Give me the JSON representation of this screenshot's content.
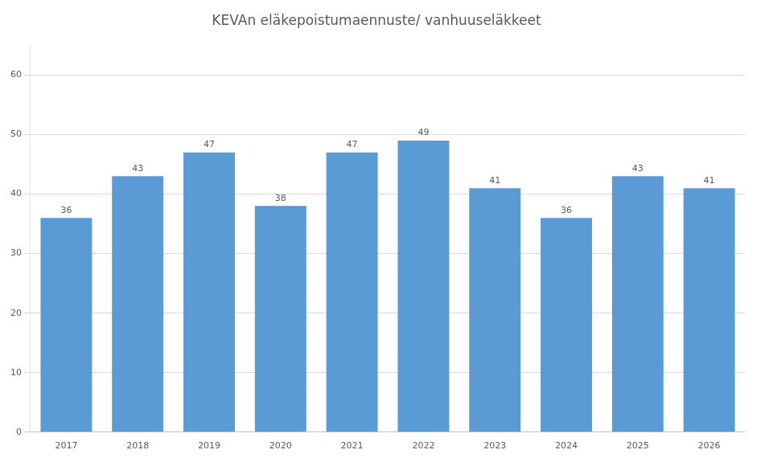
{
  "chart_data": {
    "type": "bar",
    "title": "KEVAn eläkepoistumaennuste/ vanhuuseläkkeet",
    "categories": [
      "2017",
      "2018",
      "2019",
      "2020",
      "2021",
      "2022",
      "2023",
      "2024",
      "2025",
      "2026"
    ],
    "values": [
      36,
      43,
      47,
      38,
      47,
      49,
      41,
      36,
      43,
      41
    ],
    "color": "#5b9bd5",
    "ylim": [
      0,
      65
    ],
    "yticks": [
      0,
      10,
      20,
      30,
      40,
      50,
      60
    ],
    "grid": true,
    "data_labels": true
  }
}
